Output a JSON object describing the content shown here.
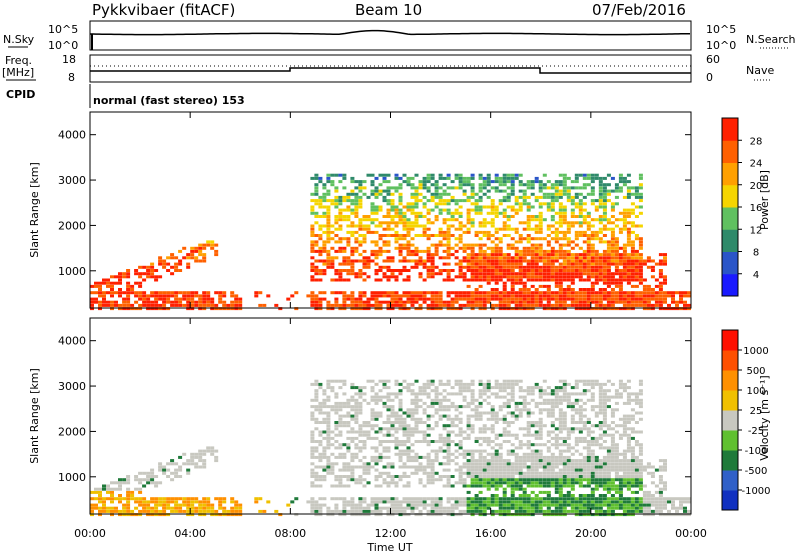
{
  "header": {
    "radar": "Pykkvibaer (fitACF)",
    "beam": "Beam 10",
    "date": "07/Feb/2016"
  },
  "side_labels": {
    "nsky": "N.Sky",
    "nsearch": "N.Search",
    "freq": "Freq.",
    "freq_unit": "[MHz]",
    "nave": "Nave",
    "cpid": "CPID"
  },
  "cpid_text": "normal (fast stereo) 153",
  "noise_panel": {
    "left_ticks": [
      "10^5",
      "10^0"
    ],
    "right_ticks": [
      "10^5",
      "10^0"
    ]
  },
  "freq_panel": {
    "left_ticks": [
      "18",
      "8"
    ],
    "right_ticks": [
      "60",
      "0"
    ]
  },
  "chart_data": [
    {
      "type": "heatmap",
      "name": "power",
      "ylabel": "Slant Range [km]",
      "ylim": [
        180,
        4500
      ],
      "yticks": [
        "4000",
        "3000",
        "2000",
        "1000"
      ],
      "colorbar": {
        "label": "Power [dB]",
        "ticks": [
          "28",
          "24",
          "20",
          "16",
          "12",
          "8",
          "4"
        ],
        "colors": [
          "#1a1aff",
          "#2a55c8",
          "#2f8a6a",
          "#60c060",
          "#f5d500",
          "#ffa000",
          "#ff6000",
          "#ff2000"
        ]
      }
    },
    {
      "type": "heatmap",
      "name": "velocity",
      "ylabel": "Slant Range [km]",
      "ylim": [
        180,
        4500
      ],
      "yticks": [
        "4000",
        "3000",
        "2000",
        "1000"
      ],
      "colorbar": {
        "label": "Velocity [m s⁻¹]",
        "ticks": [
          "1000",
          "500",
          "100",
          "25",
          "-25",
          "-100",
          "-500",
          "-1000"
        ],
        "colors": [
          "#1030c0",
          "#3060c8",
          "#1f7a3a",
          "#60c030",
          "#c8c8c0",
          "#f0c000",
          "#ff9000",
          "#ff5000",
          "#ff1000"
        ]
      }
    }
  ],
  "x_axis": {
    "ticks": [
      "00:00",
      "04:00",
      "08:00",
      "12:00",
      "16:00",
      "20:00",
      "00:00"
    ],
    "label": "Time UT"
  }
}
